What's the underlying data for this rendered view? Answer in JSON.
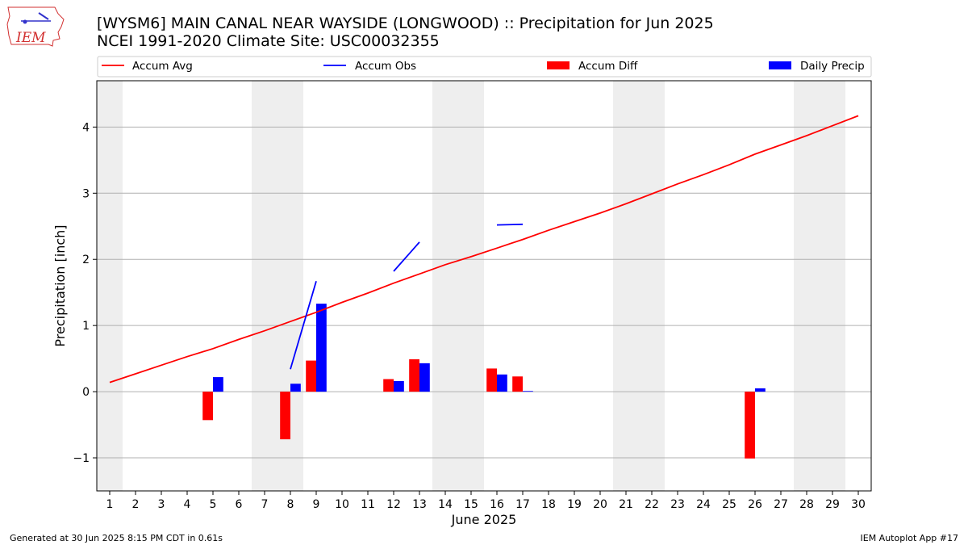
{
  "header": {
    "title_line1": "[WYSM6] MAIN CANAL NEAR WAYSIDE (LONGWOOD) :: Precipitation for Jun 2025",
    "title_line2": "NCEI 1991-2020 Climate Site: USC00032355",
    "logo_text": "IEM"
  },
  "footer": {
    "generated": "Generated at 30 Jun 2025 8:15 PM CDT in 0.61s",
    "app": "IEM Autoplot App #17"
  },
  "chart_data": {
    "type": "bar",
    "title": "[WYSM6] MAIN CANAL NEAR WAYSIDE (LONGWOOD) :: Precipitation for Jun 2025",
    "subtitle": "NCEI 1991-2020 Climate Site: USC00032355",
    "xlabel": "June 2025",
    "ylabel": "Precipitation [inch]",
    "xlim": [
      0.5,
      30.5
    ],
    "ylim": [
      -1.5,
      4.7
    ],
    "x_ticks": [
      1,
      2,
      3,
      4,
      5,
      6,
      7,
      8,
      9,
      10,
      11,
      12,
      13,
      14,
      15,
      16,
      17,
      18,
      19,
      20,
      21,
      22,
      23,
      24,
      25,
      26,
      27,
      28,
      29,
      30
    ],
    "y_ticks": [
      -1,
      0,
      1,
      2,
      3,
      4
    ],
    "y_tick_labels": [
      "−1",
      "0",
      "1",
      "2",
      "3",
      "4"
    ],
    "grid": "horizontal",
    "legend_position": "top",
    "weekend_shading": [
      [
        0.5,
        1.5
      ],
      [
        6.5,
        8.5
      ],
      [
        13.5,
        15.5
      ],
      [
        20.5,
        22.5
      ],
      [
        27.5,
        29.5
      ]
    ],
    "weekend_color": "#eeeeee",
    "legend": [
      {
        "label": "Accum Avg",
        "kind": "line",
        "color": "#ff0000"
      },
      {
        "label": "Accum Obs",
        "kind": "line",
        "color": "#0000ff"
      },
      {
        "label": "Accum Diff",
        "kind": "bar",
        "color": "#ff0000"
      },
      {
        "label": "Daily Precip",
        "kind": "bar",
        "color": "#0000ff"
      }
    ],
    "series": [
      {
        "name": "Accum Avg",
        "type": "line",
        "color": "#ff0000",
        "x": [
          1,
          2,
          3,
          4,
          5,
          6,
          7,
          8,
          9,
          10,
          11,
          12,
          13,
          14,
          15,
          16,
          17,
          18,
          19,
          20,
          21,
          22,
          23,
          24,
          25,
          26,
          27,
          28,
          29,
          30
        ],
        "values": [
          0.14,
          0.27,
          0.4,
          0.53,
          0.65,
          0.79,
          0.92,
          1.06,
          1.2,
          1.35,
          1.49,
          1.64,
          1.78,
          1.92,
          2.04,
          2.17,
          2.3,
          2.44,
          2.57,
          2.7,
          2.84,
          2.99,
          3.14,
          3.28,
          3.43,
          3.59,
          3.73,
          3.87,
          4.02,
          4.17
        ]
      },
      {
        "name": "Accum Obs",
        "type": "line",
        "color": "#0000ff",
        "x": [
          1,
          2,
          3,
          4,
          5,
          6,
          7,
          8,
          9,
          10,
          11,
          12,
          13,
          14,
          15,
          16,
          17,
          18,
          19,
          20,
          21,
          22,
          23,
          24,
          25,
          26,
          27,
          28,
          29,
          30
        ],
        "values": [
          null,
          null,
          null,
          null,
          null,
          null,
          null,
          0.34,
          1.67,
          null,
          null,
          1.82,
          2.26,
          null,
          null,
          2.52,
          2.53,
          null,
          null,
          null,
          null,
          null,
          null,
          null,
          null,
          null,
          null,
          null,
          null,
          null
        ]
      },
      {
        "name": "Accum Diff",
        "type": "bar",
        "color": "#ff0000",
        "x": [
          5,
          8,
          9,
          12,
          13,
          16,
          17,
          26
        ],
        "values": [
          -0.43,
          -0.72,
          0.47,
          0.19,
          0.49,
          0.35,
          0.23,
          -1.01
        ]
      },
      {
        "name": "Daily Precip",
        "type": "bar",
        "color": "#0000ff",
        "x": [
          5,
          8,
          9,
          12,
          13,
          16,
          17,
          26
        ],
        "values": [
          0.22,
          0.12,
          1.33,
          0.16,
          0.43,
          0.26,
          0.01,
          0.05
        ]
      }
    ]
  }
}
